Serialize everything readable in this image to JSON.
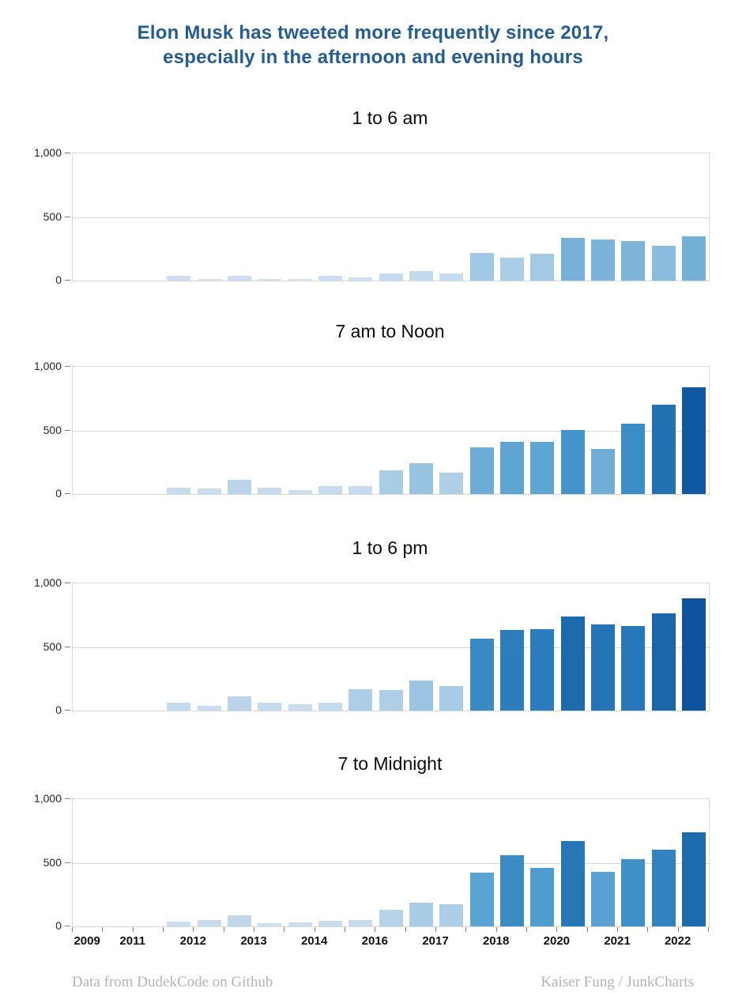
{
  "title": {
    "line1": "Elon Musk has tweeted more frequently since 2017,",
    "line2": "especially in the afternoon and evening hours",
    "color": "#235d94"
  },
  "footer": {
    "left": "Data from DudekCode on Github",
    "right": "Kaiser Fung / JunkCharts"
  },
  "colors": {
    "grid": "#d9d9d9",
    "tick": "#808080",
    "axis_label": "#262626"
  },
  "bar_color_scale": {
    "description": "bar fill darkens with value (tweets per period)",
    "stops": [
      [
        0,
        "#d4e3f1"
      ],
      [
        50,
        "#c8dcee"
      ],
      [
        100,
        "#bed6ea"
      ],
      [
        200,
        "#a7cbe5"
      ],
      [
        300,
        "#82b6da"
      ],
      [
        350,
        "#72aed7"
      ],
      [
        420,
        "#5ba3d3"
      ],
      [
        500,
        "#4594c9"
      ],
      [
        560,
        "#3a8ac4"
      ],
      [
        640,
        "#2c7cbb"
      ],
      [
        700,
        "#2271b3"
      ],
      [
        770,
        "#1a64a9"
      ],
      [
        840,
        "#1257a1"
      ],
      [
        900,
        "#0e509d"
      ]
    ]
  },
  "x_axis": {
    "num_slots": 21,
    "tick_count": 22,
    "labels": [
      {
        "text": "2009",
        "slot_pos": 0.5
      },
      {
        "text": "2011",
        "slot_pos": 2
      },
      {
        "text": "2012",
        "slot_pos": 4
      },
      {
        "text": "2013",
        "slot_pos": 6
      },
      {
        "text": "2014",
        "slot_pos": 8
      },
      {
        "text": "2016",
        "slot_pos": 10
      },
      {
        "text": "2017",
        "slot_pos": 12
      },
      {
        "text": "2018",
        "slot_pos": 14
      },
      {
        "text": "2020",
        "slot_pos": 16
      },
      {
        "text": "2021",
        "slot_pos": 18
      },
      {
        "text": "2022",
        "slot_pos": 20
      }
    ]
  },
  "chart_data": [
    {
      "type": "bar",
      "title": "1 to 6 am",
      "ylim": [
        0,
        1000
      ],
      "yticks": [
        {
          "value": 0,
          "label": "0"
        },
        {
          "value": 500,
          "label": "500"
        },
        {
          "value": 1000,
          "label": "1,000"
        }
      ],
      "grid": true,
      "x_labels_visible": false,
      "values": [
        0,
        0,
        0,
        35,
        10,
        35,
        15,
        10,
        35,
        25,
        55,
        75,
        55,
        215,
        180,
        210,
        335,
        320,
        310,
        275,
        345
      ]
    },
    {
      "type": "bar",
      "title": "7 am to Noon",
      "ylim": [
        0,
        1000
      ],
      "yticks": [
        {
          "value": 0,
          "label": "0"
        },
        {
          "value": 500,
          "label": "500"
        },
        {
          "value": 1000,
          "label": "1,000"
        }
      ],
      "grid": true,
      "x_labels_visible": false,
      "values": [
        0,
        0,
        0,
        50,
        45,
        115,
        50,
        30,
        60,
        60,
        185,
        240,
        165,
        365,
        410,
        410,
        505,
        355,
        550,
        700,
        840
      ]
    },
    {
      "type": "bar",
      "title": "1 to 6 pm",
      "ylim": [
        0,
        1000
      ],
      "yticks": [
        {
          "value": 0,
          "label": "0"
        },
        {
          "value": 500,
          "label": "500"
        },
        {
          "value": 1000,
          "label": "1,000"
        }
      ],
      "grid": true,
      "x_labels_visible": false,
      "values": [
        0,
        0,
        0,
        65,
        40,
        115,
        60,
        50,
        60,
        170,
        160,
        235,
        190,
        565,
        635,
        640,
        740,
        680,
        665,
        765,
        885
      ]
    },
    {
      "type": "bar",
      "title": "7 to Midnight",
      "ylim": [
        0,
        1000
      ],
      "yticks": [
        {
          "value": 0,
          "label": "0"
        },
        {
          "value": 500,
          "label": "500"
        },
        {
          "value": 1000,
          "label": "1,000"
        }
      ],
      "grid": true,
      "x_labels_visible": true,
      "values": [
        0,
        0,
        0,
        35,
        50,
        85,
        25,
        30,
        45,
        50,
        130,
        185,
        175,
        420,
        560,
        460,
        670,
        430,
        530,
        605,
        740
      ]
    }
  ]
}
